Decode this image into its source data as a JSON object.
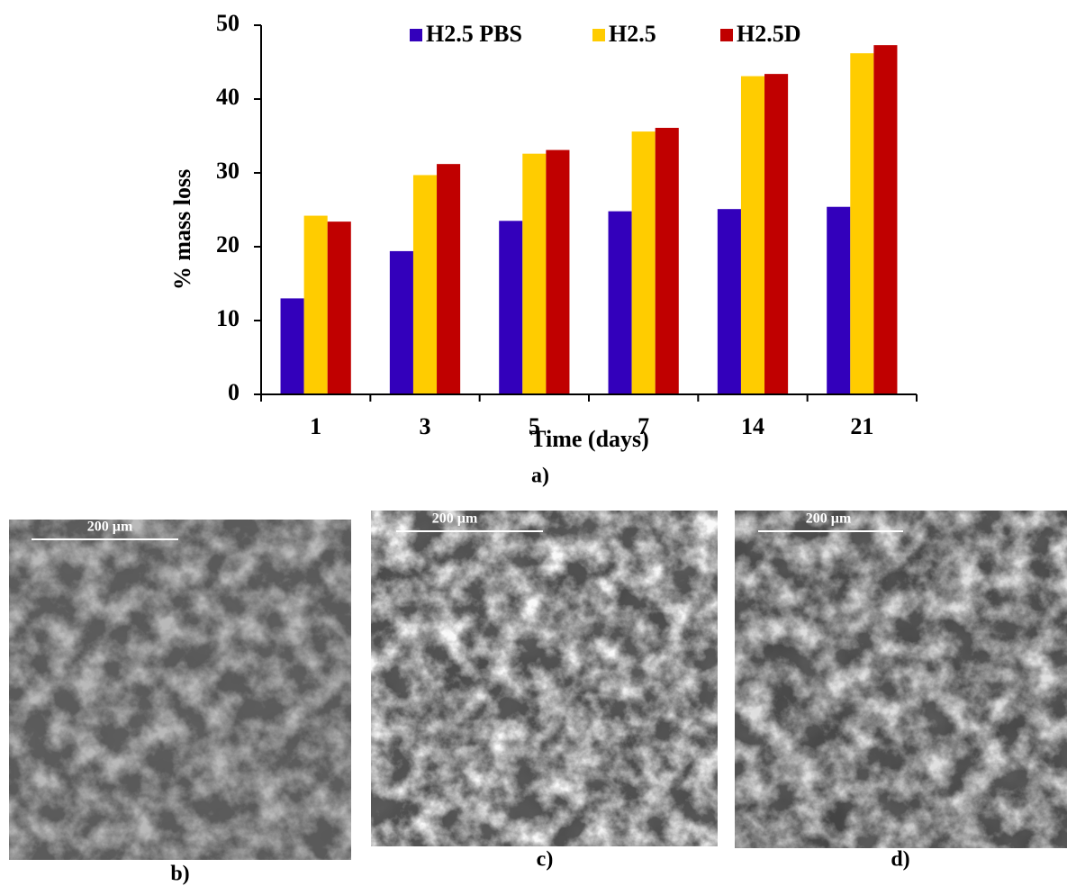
{
  "chart_data": {
    "type": "bar",
    "x_label": "Time (days)",
    "y_label": "% mass loss",
    "panel_label": "a)",
    "categories": [
      "1",
      "3",
      "5",
      "7",
      "14",
      "21"
    ],
    "series": [
      {
        "name": "H2.5 PBS",
        "color": "#3300bb",
        "values": [
          13.0,
          19.4,
          23.5,
          24.8,
          25.1,
          25.4
        ]
      },
      {
        "name": "H2.5",
        "color": "#ffcc00",
        "values": [
          24.2,
          29.7,
          32.6,
          35.6,
          43.1,
          46.2
        ]
      },
      {
        "name": "H2.5D",
        "color": "#c00000",
        "values": [
          23.4,
          31.2,
          33.1,
          36.1,
          43.4,
          47.3
        ]
      }
    ],
    "ylim": [
      0,
      50
    ],
    "yticks": [
      0,
      10,
      20,
      30,
      40,
      50
    ],
    "grid": false,
    "legend": "top"
  },
  "panels": [
    {
      "label": "b)",
      "scale_bar": "200 µm"
    },
    {
      "label": "c)",
      "scale_bar": "200 µm"
    },
    {
      "label": "d)",
      "scale_bar": "200 µm"
    }
  ]
}
